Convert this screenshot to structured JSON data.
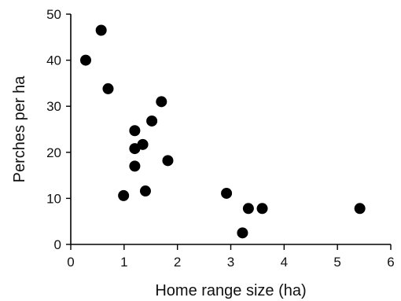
{
  "chart_data": {
    "type": "scatter",
    "title": "",
    "xlabel": "Home range size (ha)",
    "ylabel": "Perches per ha",
    "xlim": [
      0,
      6
    ],
    "ylim": [
      0,
      50
    ],
    "x_ticks": [
      "0",
      "1",
      "2",
      "3",
      "4",
      "5",
      "6"
    ],
    "y_ticks": [
      "0",
      "10",
      "20",
      "30",
      "40",
      "50"
    ],
    "grid": false,
    "legend": "none",
    "marker_color": "#000000",
    "series": [
      {
        "points": [
          {
            "x": 0.28,
            "y": 40.0
          },
          {
            "x": 0.57,
            "y": 46.5
          },
          {
            "x": 0.7,
            "y": 33.8
          },
          {
            "x": 0.99,
            "y": 10.6
          },
          {
            "x": 1.2,
            "y": 24.7
          },
          {
            "x": 1.2,
            "y": 20.8
          },
          {
            "x": 1.2,
            "y": 17.0
          },
          {
            "x": 1.35,
            "y": 21.7
          },
          {
            "x": 1.4,
            "y": 11.6
          },
          {
            "x": 1.52,
            "y": 26.8
          },
          {
            "x": 1.7,
            "y": 31.0
          },
          {
            "x": 1.82,
            "y": 18.2
          },
          {
            "x": 2.92,
            "y": 11.1
          },
          {
            "x": 3.22,
            "y": 2.5
          },
          {
            "x": 3.33,
            "y": 7.8
          },
          {
            "x": 3.59,
            "y": 7.8
          },
          {
            "x": 5.42,
            "y": 7.8
          }
        ]
      }
    ]
  }
}
